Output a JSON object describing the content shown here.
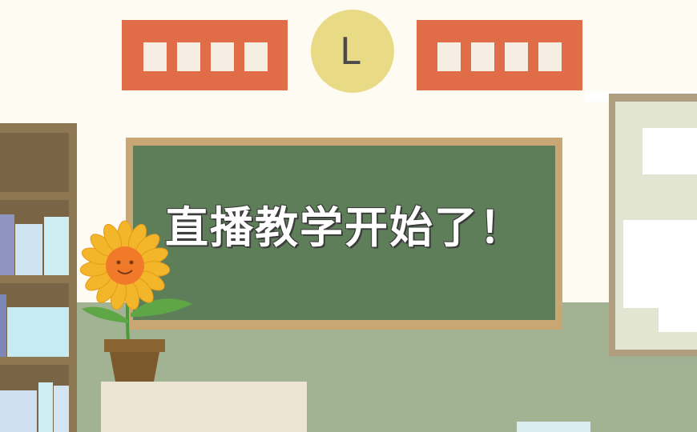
{
  "board": {
    "text": "直播教学开始了！"
  },
  "clock": {
    "label": "L"
  },
  "banners": {
    "left": {
      "blocks": 4
    },
    "right": {
      "blocks": 4
    }
  },
  "colors": {
    "wall": "#fdfbf2",
    "floor": "#a2b394",
    "banner": "#e06c48",
    "board_frame": "#c8a774",
    "board": "#5e7d59",
    "clock": "#e9da86",
    "shelf": "#8e7853",
    "sunflower_petal": "#f3b52a",
    "pot": "#7d5a2d"
  }
}
